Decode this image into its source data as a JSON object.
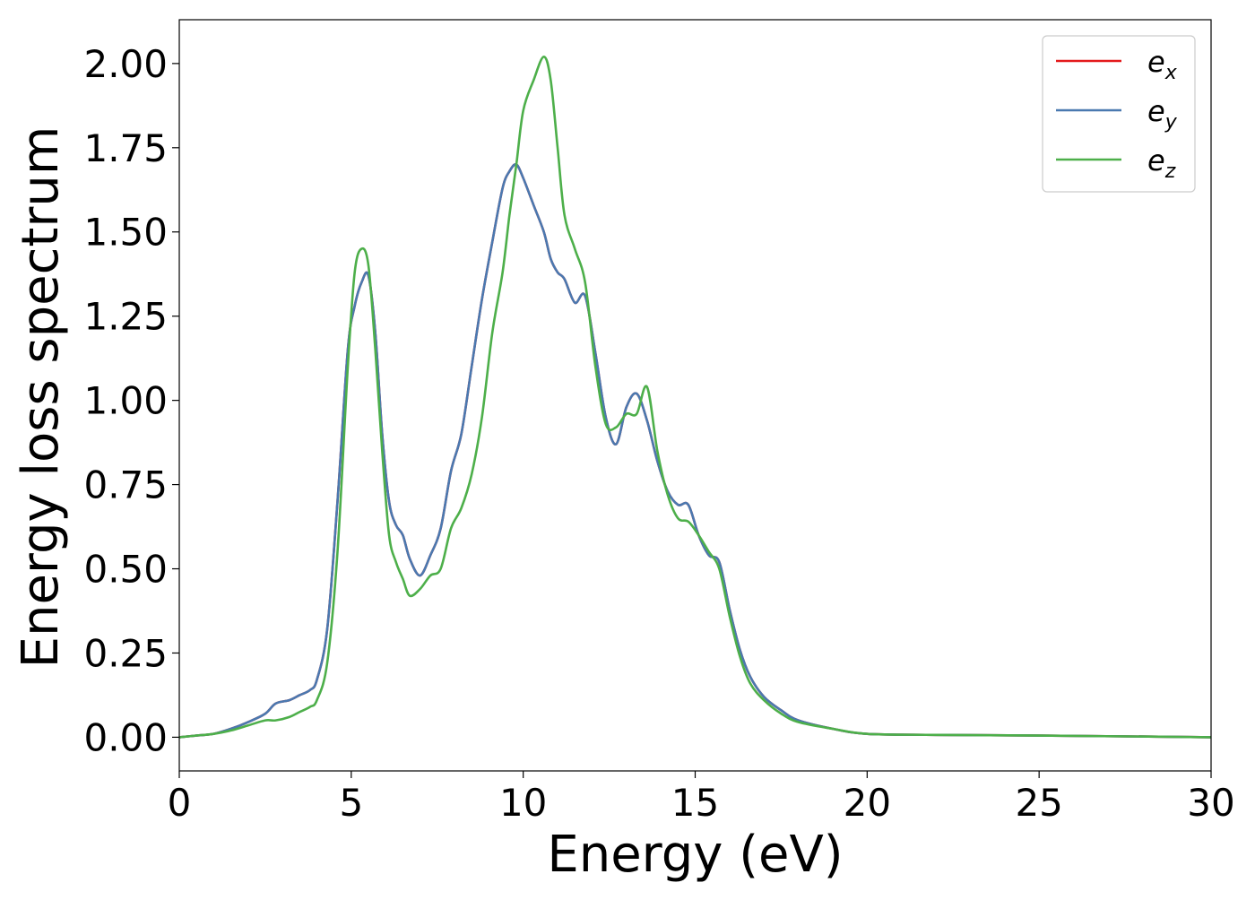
{
  "chart_data": {
    "type": "line",
    "title": "",
    "xlabel": "Energy (eV)",
    "ylabel": "Energy loss spectrum",
    "xlim": [
      0,
      30
    ],
    "ylim": [
      -0.1,
      2.13
    ],
    "grid": false,
    "legend_position": "top-right",
    "x_ticks": [
      0,
      5,
      10,
      15,
      20,
      25,
      30
    ],
    "x_tick_labels": [
      "0",
      "5",
      "10",
      "15",
      "20",
      "25",
      "30"
    ],
    "y_ticks": [
      0.0,
      0.25,
      0.5,
      0.75,
      1.0,
      1.25,
      1.5,
      1.75,
      2.0
    ],
    "y_tick_labels": [
      "0.00",
      "0.25",
      "0.50",
      "0.75",
      "1.00",
      "1.25",
      "1.50",
      "1.75",
      "2.00"
    ],
    "series": [
      {
        "name_base": "e",
        "name_sub": "x",
        "color": "#e41a1c",
        "x": [
          0,
          0.5,
          1,
          1.5,
          2,
          2.5,
          2.8,
          3.2,
          3.5,
          3.8,
          4.0,
          4.3,
          4.6,
          4.9,
          5.1,
          5.3,
          5.5,
          5.7,
          5.9,
          6.1,
          6.3,
          6.5,
          6.7,
          7.0,
          7.3,
          7.6,
          7.9,
          8.2,
          8.5,
          8.8,
          9.1,
          9.4,
          9.6,
          9.8,
          10.0,
          10.3,
          10.6,
          10.8,
          11.0,
          11.2,
          11.5,
          11.8,
          12.1,
          12.4,
          12.7,
          13.0,
          13.3,
          13.6,
          13.9,
          14.2,
          14.5,
          14.8,
          15.1,
          15.4,
          15.7,
          16.0,
          16.3,
          16.6,
          17.0,
          17.5,
          18,
          19,
          20,
          22,
          25,
          30
        ],
        "y": [
          0,
          0.005,
          0.01,
          0.025,
          0.045,
          0.07,
          0.1,
          0.11,
          0.125,
          0.14,
          0.17,
          0.32,
          0.7,
          1.15,
          1.28,
          1.35,
          1.37,
          1.2,
          0.9,
          0.7,
          0.63,
          0.6,
          0.53,
          0.48,
          0.54,
          0.62,
          0.79,
          0.9,
          1.1,
          1.3,
          1.47,
          1.63,
          1.68,
          1.7,
          1.66,
          1.58,
          1.5,
          1.42,
          1.38,
          1.36,
          1.29,
          1.31,
          1.14,
          0.95,
          0.87,
          0.98,
          1.02,
          0.94,
          0.82,
          0.73,
          0.69,
          0.69,
          0.6,
          0.54,
          0.52,
          0.38,
          0.26,
          0.18,
          0.12,
          0.08,
          0.05,
          0.025,
          0.01,
          0.007,
          0.005,
          0.0
        ]
      },
      {
        "name_base": "e",
        "name_sub": "y",
        "color": "#4a79b0",
        "x": [
          0,
          0.5,
          1,
          1.5,
          2,
          2.5,
          2.8,
          3.2,
          3.5,
          3.8,
          4.0,
          4.3,
          4.6,
          4.9,
          5.1,
          5.3,
          5.5,
          5.7,
          5.9,
          6.1,
          6.3,
          6.5,
          6.7,
          7.0,
          7.3,
          7.6,
          7.9,
          8.2,
          8.5,
          8.8,
          9.1,
          9.4,
          9.6,
          9.8,
          10.0,
          10.3,
          10.6,
          10.8,
          11.0,
          11.2,
          11.5,
          11.8,
          12.1,
          12.4,
          12.7,
          13.0,
          13.3,
          13.6,
          13.9,
          14.2,
          14.5,
          14.8,
          15.1,
          15.4,
          15.7,
          16.0,
          16.3,
          16.6,
          17.0,
          17.5,
          18,
          19,
          20,
          22,
          25,
          30
        ],
        "y": [
          0,
          0.005,
          0.01,
          0.025,
          0.045,
          0.07,
          0.1,
          0.11,
          0.125,
          0.14,
          0.17,
          0.32,
          0.7,
          1.15,
          1.28,
          1.35,
          1.37,
          1.2,
          0.9,
          0.7,
          0.63,
          0.6,
          0.53,
          0.48,
          0.54,
          0.62,
          0.79,
          0.9,
          1.1,
          1.3,
          1.47,
          1.63,
          1.68,
          1.7,
          1.66,
          1.58,
          1.5,
          1.42,
          1.38,
          1.36,
          1.29,
          1.31,
          1.14,
          0.95,
          0.87,
          0.98,
          1.02,
          0.94,
          0.82,
          0.73,
          0.69,
          0.69,
          0.6,
          0.54,
          0.52,
          0.38,
          0.26,
          0.18,
          0.12,
          0.08,
          0.05,
          0.025,
          0.01,
          0.007,
          0.005,
          0.0
        ]
      },
      {
        "name_base": "e",
        "name_sub": "z",
        "color": "#4daf4a",
        "x": [
          0,
          0.5,
          1,
          1.5,
          2,
          2.5,
          2.8,
          3.2,
          3.5,
          3.8,
          4.0,
          4.3,
          4.6,
          4.9,
          5.1,
          5.3,
          5.5,
          5.7,
          5.9,
          6.1,
          6.3,
          6.5,
          6.7,
          7.0,
          7.3,
          7.6,
          7.9,
          8.2,
          8.5,
          8.8,
          9.1,
          9.4,
          9.6,
          9.8,
          10.0,
          10.3,
          10.6,
          10.8,
          11.0,
          11.2,
          11.5,
          11.8,
          12.1,
          12.4,
          12.7,
          13.0,
          13.3,
          13.6,
          13.9,
          14.2,
          14.5,
          14.8,
          15.1,
          15.4,
          15.7,
          16.0,
          16.3,
          16.6,
          17.0,
          17.5,
          18,
          19,
          20,
          22,
          25,
          30
        ],
        "y": [
          0,
          0.005,
          0.01,
          0.02,
          0.035,
          0.05,
          0.05,
          0.06,
          0.075,
          0.09,
          0.11,
          0.22,
          0.55,
          1.1,
          1.38,
          1.45,
          1.4,
          1.15,
          0.85,
          0.6,
          0.52,
          0.47,
          0.42,
          0.44,
          0.48,
          0.5,
          0.62,
          0.68,
          0.78,
          0.95,
          1.2,
          1.38,
          1.55,
          1.7,
          1.86,
          1.95,
          2.02,
          1.95,
          1.75,
          1.55,
          1.45,
          1.35,
          1.1,
          0.93,
          0.92,
          0.96,
          0.96,
          1.04,
          0.85,
          0.72,
          0.65,
          0.64,
          0.6,
          0.55,
          0.5,
          0.36,
          0.24,
          0.16,
          0.11,
          0.07,
          0.045,
          0.025,
          0.01,
          0.007,
          0.005,
          0.0
        ]
      }
    ]
  }
}
